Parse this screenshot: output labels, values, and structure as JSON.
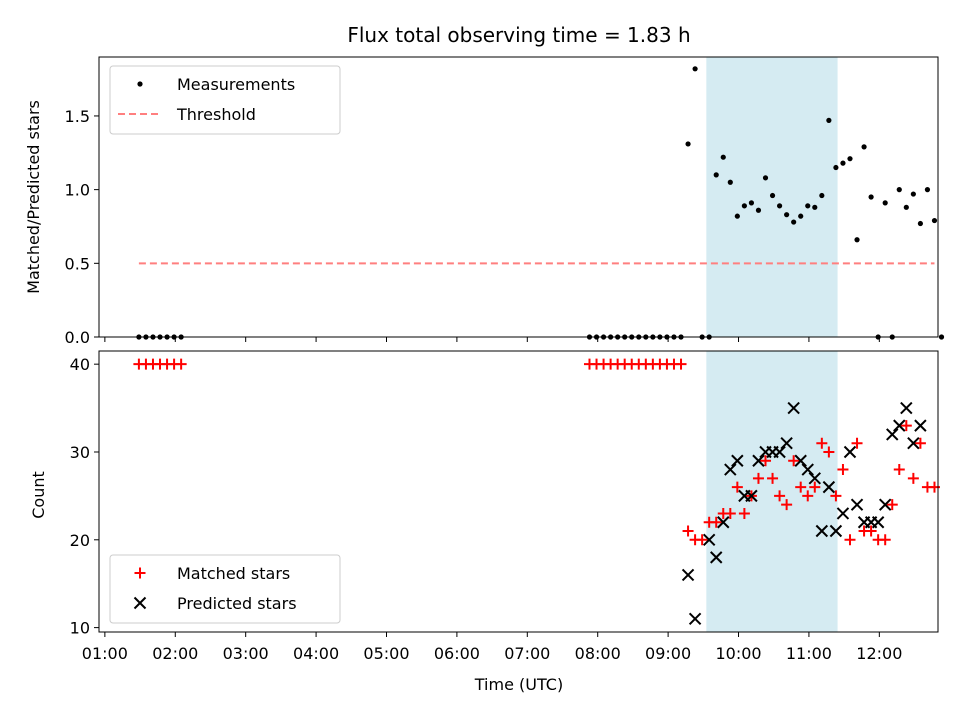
{
  "chart_data": [
    {
      "type": "scatter",
      "title": "Flux total observing time = 1.83 h",
      "xlabel": "",
      "ylabel": "Matched/Predicted stars",
      "ylim": [
        0,
        1.9
      ],
      "yticks": [
        "0.0",
        "0.5",
        "1.0",
        "1.5"
      ],
      "xlim": [
        "00:55",
        "12:50"
      ],
      "shaded_span": [
        "09:33",
        "11:24"
      ],
      "shade_color": "#add8e6",
      "legend_position": "upper-left",
      "series": [
        {
          "name": "Measurements",
          "marker": "dot",
          "color": "#000000",
          "points": [
            [
              "01:29",
              0
            ],
            [
              "01:35",
              0
            ],
            [
              "01:41",
              0
            ],
            [
              "01:47",
              0
            ],
            [
              "01:53",
              0
            ],
            [
              "01:59",
              0
            ],
            [
              "02:05",
              0
            ],
            [
              "07:53",
              0
            ],
            [
              "07:59",
              0
            ],
            [
              "08:05",
              0
            ],
            [
              "08:11",
              0
            ],
            [
              "08:17",
              0
            ],
            [
              "08:23",
              0
            ],
            [
              "08:29",
              0
            ],
            [
              "08:35",
              0
            ],
            [
              "08:41",
              0
            ],
            [
              "08:47",
              0
            ],
            [
              "08:53",
              0
            ],
            [
              "08:59",
              0
            ],
            [
              "09:05",
              0
            ],
            [
              "09:11",
              0
            ],
            [
              "09:17",
              1.31
            ],
            [
              "09:23",
              1.82
            ],
            [
              "09:29",
              0
            ],
            [
              "09:35",
              0
            ],
            [
              "09:41",
              1.1
            ],
            [
              "09:47",
              1.22
            ],
            [
              "09:53",
              1.05
            ],
            [
              "09:59",
              0.82
            ],
            [
              "10:05",
              0.89
            ],
            [
              "10:11",
              0.91
            ],
            [
              "10:17",
              0.86
            ],
            [
              "10:23",
              1.08
            ],
            [
              "10:29",
              0.96
            ],
            [
              "10:35",
              0.89
            ],
            [
              "10:41",
              0.83
            ],
            [
              "10:47",
              0.78
            ],
            [
              "10:53",
              0.82
            ],
            [
              "10:59",
              0.89
            ],
            [
              "11:05",
              0.88
            ],
            [
              "11:11",
              0.96
            ],
            [
              "11:17",
              1.47
            ],
            [
              "11:23",
              1.15
            ],
            [
              "11:29",
              1.18
            ],
            [
              "11:35",
              1.21
            ],
            [
              "11:41",
              0.66
            ],
            [
              "11:47",
              1.29
            ],
            [
              "11:53",
              0.95
            ],
            [
              "11:59",
              0
            ],
            [
              "12:05",
              0.91
            ],
            [
              "12:11",
              0
            ],
            [
              "12:17",
              1.0
            ],
            [
              "12:23",
              0.88
            ],
            [
              "12:29",
              0.97
            ],
            [
              "12:35",
              0.77
            ],
            [
              "12:41",
              1.0
            ],
            [
              "12:47",
              0.79
            ],
            [
              "12:53",
              0
            ]
          ]
        },
        {
          "name": "Threshold",
          "marker": "dashed-line",
          "color": "#ff7f7f",
          "points": [
            [
              "01:29",
              0.5
            ],
            [
              "12:47",
              0.5
            ]
          ]
        }
      ]
    },
    {
      "type": "scatter",
      "title": "",
      "xlabel": "Time (UTC)",
      "ylabel": "Count",
      "ylim": [
        9.5,
        41.5
      ],
      "yticks": [
        "10",
        "20",
        "30",
        "40"
      ],
      "xlim": [
        "00:55",
        "12:50"
      ],
      "xticks": [
        "01:00",
        "02:00",
        "03:00",
        "04:00",
        "05:00",
        "06:00",
        "07:00",
        "08:00",
        "09:00",
        "10:00",
        "11:00",
        "12:00"
      ],
      "shaded_span": [
        "09:33",
        "11:24"
      ],
      "shade_color": "#add8e6",
      "legend_position": "lower-left",
      "series": [
        {
          "name": "Matched stars",
          "marker": "plus",
          "color": "#ff0000",
          "points": [
            [
              "01:29",
              40
            ],
            [
              "01:35",
              40
            ],
            [
              "01:41",
              40
            ],
            [
              "01:47",
              40
            ],
            [
              "01:53",
              40
            ],
            [
              "01:59",
              40
            ],
            [
              "02:05",
              40
            ],
            [
              "07:53",
              40
            ],
            [
              "07:59",
              40
            ],
            [
              "08:05",
              40
            ],
            [
              "08:11",
              40
            ],
            [
              "08:17",
              40
            ],
            [
              "08:23",
              40
            ],
            [
              "08:29",
              40
            ],
            [
              "08:35",
              40
            ],
            [
              "08:41",
              40
            ],
            [
              "08:47",
              40
            ],
            [
              "08:53",
              40
            ],
            [
              "08:59",
              40
            ],
            [
              "09:05",
              40
            ],
            [
              "09:11",
              40
            ],
            [
              "09:17",
              21
            ],
            [
              "09:23",
              20
            ],
            [
              "09:29",
              20
            ],
            [
              "09:35",
              22
            ],
            [
              "09:41",
              22
            ],
            [
              "09:47",
              23
            ],
            [
              "09:53",
              23
            ],
            [
              "09:59",
              26
            ],
            [
              "10:05",
              23
            ],
            [
              "10:11",
              25
            ],
            [
              "10:17",
              27
            ],
            [
              "10:23",
              29
            ],
            [
              "10:29",
              27
            ],
            [
              "10:35",
              25
            ],
            [
              "10:41",
              24
            ],
            [
              "10:47",
              29
            ],
            [
              "10:53",
              26
            ],
            [
              "10:59",
              25
            ],
            [
              "11:05",
              26
            ],
            [
              "11:11",
              31
            ],
            [
              "11:17",
              30
            ],
            [
              "11:23",
              25
            ],
            [
              "11:29",
              28
            ],
            [
              "11:35",
              20
            ],
            [
              "11:41",
              31
            ],
            [
              "11:47",
              21
            ],
            [
              "11:53",
              21
            ],
            [
              "11:59",
              20
            ],
            [
              "12:05",
              20
            ],
            [
              "12:11",
              24
            ],
            [
              "12:17",
              28
            ],
            [
              "12:23",
              33
            ],
            [
              "12:29",
              27
            ],
            [
              "12:35",
              31
            ],
            [
              "12:41",
              26
            ],
            [
              "12:47",
              26
            ]
          ]
        },
        {
          "name": "Predicted stars",
          "marker": "x",
          "color": "#000000",
          "points": [
            [
              "09:17",
              16
            ],
            [
              "09:23",
              11
            ],
            [
              "09:35",
              20
            ],
            [
              "09:41",
              18
            ],
            [
              "09:47",
              22
            ],
            [
              "09:53",
              28
            ],
            [
              "09:59",
              29
            ],
            [
              "10:05",
              25
            ],
            [
              "10:11",
              25
            ],
            [
              "10:17",
              29
            ],
            [
              "10:23",
              30
            ],
            [
              "10:29",
              30
            ],
            [
              "10:35",
              30
            ],
            [
              "10:41",
              31
            ],
            [
              "10:47",
              35
            ],
            [
              "10:53",
              29
            ],
            [
              "10:59",
              28
            ],
            [
              "11:05",
              27
            ],
            [
              "11:11",
              21
            ],
            [
              "11:17",
              26
            ],
            [
              "11:23",
              21
            ],
            [
              "11:29",
              23
            ],
            [
              "11:35",
              30
            ],
            [
              "11:41",
              24
            ],
            [
              "11:47",
              22
            ],
            [
              "11:53",
              22
            ],
            [
              "11:59",
              22
            ],
            [
              "12:05",
              24
            ],
            [
              "12:11",
              32
            ],
            [
              "12:17",
              33
            ],
            [
              "12:23",
              35
            ],
            [
              "12:29",
              31
            ],
            [
              "12:35",
              33
            ]
          ]
        }
      ]
    }
  ]
}
